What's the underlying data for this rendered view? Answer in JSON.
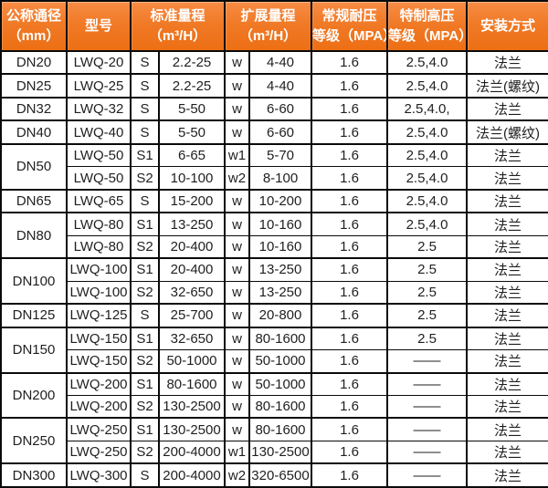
{
  "colors": {
    "header_gradient_top": "#f78c45",
    "header_gradient_bottom": "#ed6f14",
    "header_text": "#ffffff",
    "border": "#0a0a0a",
    "body_text": "#1f1f1f",
    "background": "#ffffff"
  },
  "table": {
    "headers": {
      "dn": {
        "line1": "公称通径",
        "line2": "（mm）"
      },
      "model": {
        "line1": "型号"
      },
      "std": {
        "line1": "标准量程",
        "line2": "（m³/H）"
      },
      "ext": {
        "line1": "扩展量程",
        "line2": "（m³/H）"
      },
      "mpa": {
        "line1": "常规耐压",
        "line2": "等级（MPA）"
      },
      "hp": {
        "line1": "特制高压",
        "line2": "等级（MPA）"
      },
      "install": {
        "line1": "安装方式"
      }
    },
    "rows": [
      {
        "dn": "DN20",
        "dn_rowspan": 1,
        "model": "LWQ-20",
        "s": "S",
        "std": "2.2-25",
        "w": "w",
        "ext": "4-40",
        "mpa": "1.6",
        "hp": "2.5,4.0",
        "install": "法兰"
      },
      {
        "dn": "DN25",
        "dn_rowspan": 1,
        "model": "LWQ-25",
        "s": "S",
        "std": "2.2-25",
        "w": "w",
        "ext": "4-40",
        "mpa": "1.6",
        "hp": "2.5,4.0",
        "install": "法兰(螺纹)"
      },
      {
        "dn": "DN32",
        "dn_rowspan": 1,
        "model": "LWQ-32",
        "s": "S",
        "std": "5-50",
        "w": "w",
        "ext": "6-60",
        "mpa": "1.6",
        "hp": "2.5,4.0,",
        "install": "法兰"
      },
      {
        "dn": "DN40",
        "dn_rowspan": 1,
        "model": "LWQ-40",
        "s": "S",
        "std": "5-50",
        "w": "w",
        "ext": "6-60",
        "mpa": "1.6",
        "hp": "2.5,4.0",
        "install": "法兰(螺纹)"
      },
      {
        "dn": "DN50",
        "dn_rowspan": 2,
        "model": "LWQ-50",
        "s": "S1",
        "std": "6-65",
        "w": "w1",
        "ext": "5-70",
        "mpa": "1.6",
        "hp": "2.5,4.0",
        "install": "法兰"
      },
      {
        "model": "LWQ-50",
        "s": "S2",
        "std": "10-100",
        "w": "w2",
        "ext": "8-100",
        "mpa": "1.6",
        "hp": "2.5,4.0",
        "install": "法兰"
      },
      {
        "dn": "DN65",
        "dn_rowspan": 1,
        "model": "LWQ-65",
        "s": "S",
        "std": "15-200",
        "w": "w",
        "ext": "10-200",
        "mpa": "1.6",
        "hp": "2.5,4.0",
        "install": "法兰"
      },
      {
        "dn": "DN80",
        "dn_rowspan": 2,
        "model": "LWQ-80",
        "s": "S1",
        "std": "13-250",
        "w": "w",
        "ext": "10-160",
        "mpa": "1.6",
        "hp": "2.5,4.0",
        "install": "法兰"
      },
      {
        "model": "LWQ-80",
        "s": "S2",
        "std": "20-400",
        "w": "w",
        "ext": "10-160",
        "mpa": "1.6",
        "hp": "2.5",
        "install": "法兰"
      },
      {
        "dn": "DN100",
        "dn_rowspan": 2,
        "model": "LWQ-100",
        "s": "S1",
        "std": "20-400",
        "w": "w",
        "ext": "13-250",
        "mpa": "1.6",
        "hp": "2.5",
        "install": "法兰"
      },
      {
        "model": "LWQ-100",
        "s": "S2",
        "std": "32-650",
        "w": "w",
        "ext": "13-250",
        "mpa": "1.6",
        "hp": "2.5",
        "install": "法兰"
      },
      {
        "dn": "DN125",
        "dn_rowspan": 1,
        "model": "LWQ-125",
        "s": "S",
        "std": "25-700",
        "w": "w",
        "ext": "20-800",
        "mpa": "1.6",
        "hp": "2.5",
        "install": "法兰"
      },
      {
        "dn": "DN150",
        "dn_rowspan": 2,
        "model": "LWQ-150",
        "s": "S1",
        "std": "32-650",
        "w": "w",
        "ext": "80-1600",
        "mpa": "1.6",
        "hp": "2.5",
        "install": "法兰"
      },
      {
        "model": "LWQ-150",
        "s": "S2",
        "std": "50-1000",
        "w": "w",
        "ext": "50-1000",
        "mpa": "1.6",
        "hp": "——",
        "install": "法兰"
      },
      {
        "dn": "DN200",
        "dn_rowspan": 2,
        "model": "LWQ-200",
        "s": "S1",
        "std": "80-1600",
        "w": "w",
        "ext": "50-1000",
        "mpa": "1.6",
        "hp": "——",
        "install": "法兰"
      },
      {
        "model": "LWQ-200",
        "s": "S2",
        "std": "130-2500",
        "w": "w",
        "ext": "80-1600",
        "mpa": "1.6",
        "hp": "——",
        "install": "法兰"
      },
      {
        "dn": "DN250",
        "dn_rowspan": 2,
        "model": "LWQ-250",
        "s": "S1",
        "std": "130-2500",
        "w": "w",
        "ext": "80-1600",
        "mpa": "1.6",
        "hp": "——",
        "install": "法兰"
      },
      {
        "model": "LWQ-250",
        "s": "S2",
        "std": "200-4000",
        "w": "w1",
        "ext": "130-2500",
        "mpa": "1.6",
        "hp": "——",
        "install": "法兰"
      },
      {
        "dn": "DN300",
        "dn_rowspan": 1,
        "model": "LWQ-300",
        "s": "S",
        "std": "200-4000",
        "w": "w2",
        "ext": "320-6500",
        "mpa": "1.6",
        "hp": "——",
        "install": "法兰"
      }
    ]
  }
}
